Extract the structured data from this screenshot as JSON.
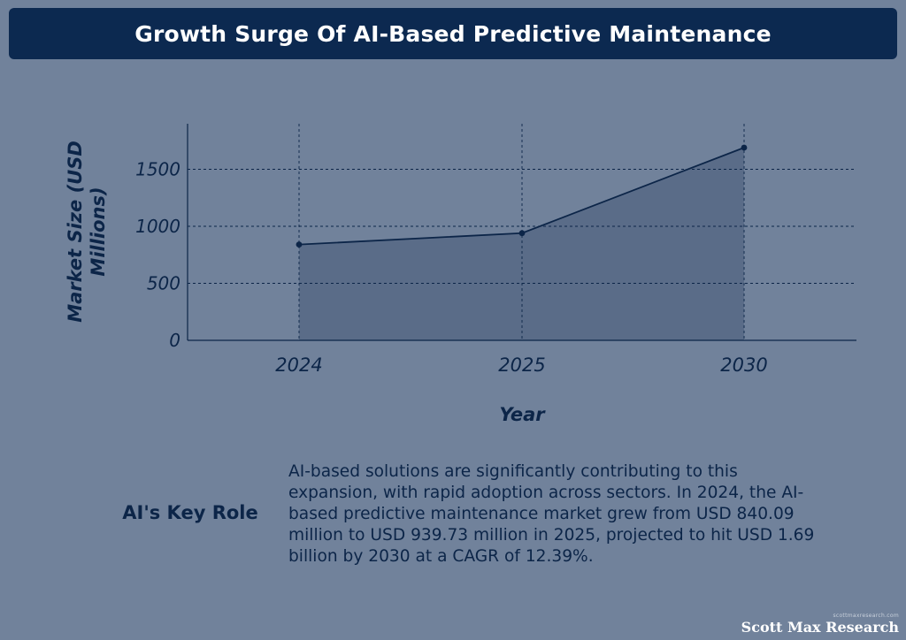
{
  "title": "Growth Surge Of AI-Based Predictive Maintenance",
  "colors": {
    "background": "#71829b",
    "title_bar": "#0c2950",
    "text_dark": "#0c2548",
    "area_fill": "#5a6c88",
    "line": "#0c2548"
  },
  "chart_data": {
    "type": "area",
    "title": "Growth Surge Of AI-Based Predictive Maintenance",
    "categories": [
      "2024",
      "2025",
      "2030"
    ],
    "values": [
      840.09,
      939.73,
      1690
    ],
    "xlabel": "Year",
    "ylabel": "Market Size (USD Millions)",
    "ylabel_lines": [
      "Market Size (USD",
      "Millions)"
    ],
    "ylim": [
      0,
      1900
    ],
    "yticks": [
      0,
      500,
      1000,
      1500
    ],
    "grid": true
  },
  "key_role": {
    "title": "AI's Key Role",
    "text": "AI-based solutions are significantly contributing to this expansion, with rapid adoption across sectors. In 2024, the AI-based predictive maintenance market grew from USD 840.09 million to USD 939.73 million in 2025, projected to hit USD 1.69 billion by 2030 at a CAGR of 12.39%."
  },
  "watermark": {
    "small": "scottmaxresearch.com",
    "brand": "Scott Max Research"
  }
}
